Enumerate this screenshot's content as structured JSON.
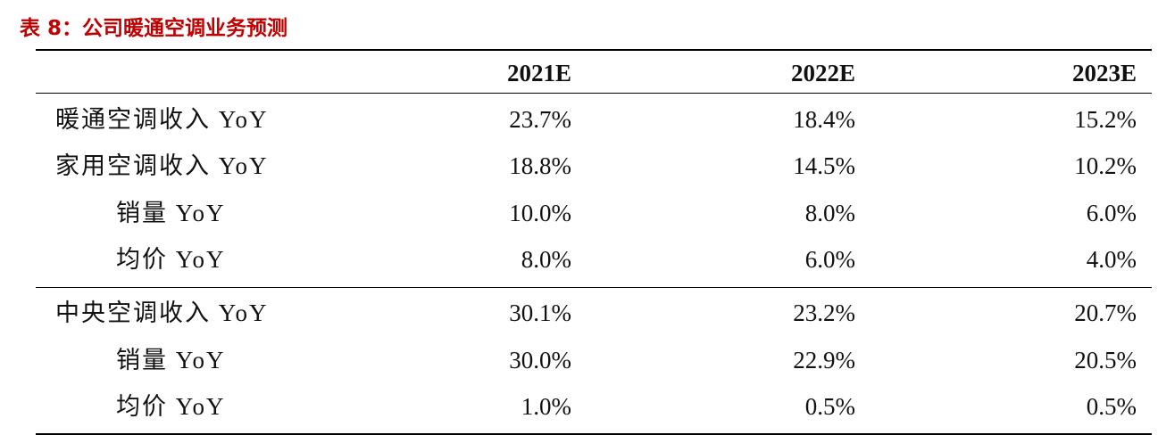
{
  "title": "表 8：公司暖通空调业务预测",
  "table": {
    "columns": [
      "2021E",
      "2022E",
      "2023E"
    ],
    "groups": [
      [
        {
          "label": "暖通空调收入 YoY",
          "indent": false,
          "cells": [
            "23.7%",
            "18.4%",
            "15.2%"
          ]
        },
        {
          "label": "家用空调收入 YoY",
          "indent": false,
          "cells": [
            "18.8%",
            "14.5%",
            "10.2%"
          ]
        },
        {
          "label": "销量 YoY",
          "indent": true,
          "cells": [
            "10.0%",
            "8.0%",
            "6.0%"
          ]
        },
        {
          "label": "均价 YoY",
          "indent": true,
          "cells": [
            "8.0%",
            "6.0%",
            "4.0%"
          ]
        }
      ],
      [
        {
          "label": "中央空调收入 YoY",
          "indent": false,
          "cells": [
            "30.1%",
            "23.2%",
            "20.7%"
          ]
        },
        {
          "label": "销量 YoY",
          "indent": true,
          "cells": [
            "30.0%",
            "22.9%",
            "20.5%"
          ]
        },
        {
          "label": "均价 YoY",
          "indent": true,
          "cells": [
            "1.0%",
            "0.5%",
            "0.5%"
          ]
        }
      ]
    ]
  }
}
